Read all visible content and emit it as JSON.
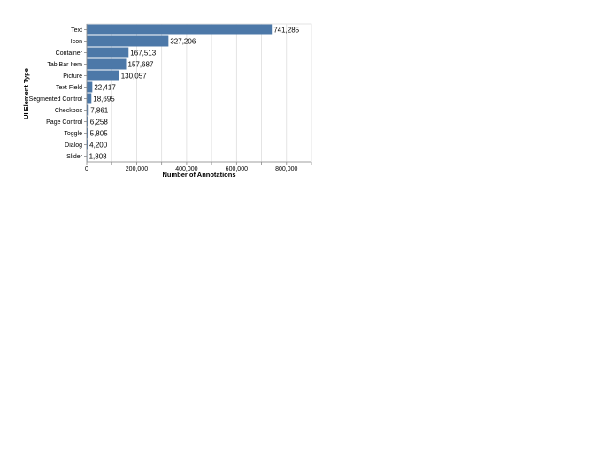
{
  "chart_data": {
    "type": "bar",
    "orientation": "horizontal",
    "xlabel": "Number of Annotations",
    "ylabel": "UI Element Type",
    "xlim": [
      0,
      900000
    ],
    "xticks": [
      0,
      200000,
      400000,
      600000,
      800000
    ],
    "xtick_labels": [
      "0",
      "200,000",
      "400,000",
      "600,000",
      "800,000"
    ],
    "grid": true,
    "legend": "none",
    "bar_color": "#4c78a8",
    "categories": [
      "Text",
      "Icon",
      "Container",
      "Tab Bar Item",
      "Picture",
      "Text Field",
      "Segmented Control",
      "Checkbox",
      "Page Control",
      "Toggle",
      "Dialog",
      "Slider"
    ],
    "values": [
      741285,
      327206,
      167513,
      157687,
      130057,
      22417,
      18695,
      7861,
      6258,
      5805,
      4200,
      1808
    ],
    "value_labels": [
      "741,285",
      "327,206",
      "167,513",
      "157,687",
      "130,057",
      "22,417",
      "18,695",
      "7,861",
      "6,258",
      "5,805",
      "4,200",
      "1,808"
    ]
  }
}
